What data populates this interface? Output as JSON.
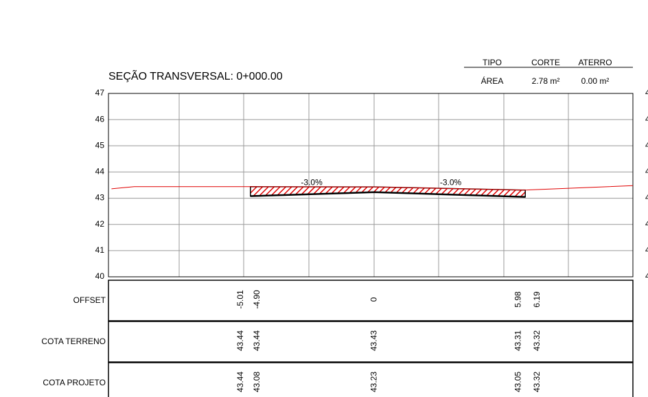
{
  "header": {
    "title": "SEÇÃO TRANSVERSAL: 0+000.00"
  },
  "summary": {
    "columns": [
      "TIPO",
      "CORTE",
      "ATERRO"
    ],
    "row": [
      "ÁREA",
      "2.78 m²",
      "0.00 m²"
    ]
  },
  "chart_data": {
    "type": "line",
    "xlim": [
      -10.52,
      10.24
    ],
    "ylim": [
      40,
      47
    ],
    "yticks": [
      40,
      41,
      42,
      43,
      44,
      45,
      46,
      47
    ],
    "series": [
      {
        "color": "#e00000",
        "x": [
          -10.4,
          -9.5,
          -5.01,
          -4.9,
          0,
          5.98,
          6.19,
          10.24
        ],
        "values": [
          43.36,
          43.44,
          43.44,
          43.44,
          43.43,
          43.31,
          43.32,
          43.48
        ]
      },
      {
        "color": "#000000",
        "x": [
          -4.9,
          0,
          5.98
        ],
        "values": [
          43.08,
          43.23,
          43.05
        ]
      }
    ],
    "annotations": [
      {
        "text": "-3.0%",
        "x": -2.9,
        "y": 43.45
      },
      {
        "text": "-3.0%",
        "x": 2.6,
        "y": 43.45
      }
    ],
    "bands": [
      {
        "label": "OFFSET",
        "x": [
          -5.01,
          -4.9,
          0,
          5.98,
          6.19
        ],
        "value_labels": [
          "-5.01",
          "-4.90",
          "0",
          "5.98",
          "6.19"
        ]
      },
      {
        "label": "COTA TERRENO",
        "x": [
          -5.01,
          -4.9,
          0,
          5.98,
          6.19
        ],
        "value_labels": [
          "43.44",
          "43.44",
          "43.43",
          "43.31",
          "43.32"
        ]
      },
      {
        "label": "COTA PROJETO",
        "x": [
          -5.01,
          -4.9,
          0,
          5.98,
          6.19
        ],
        "value_labels": [
          "43.44",
          "43.08",
          "43.23",
          "43.05",
          "43.32"
        ]
      }
    ]
  }
}
